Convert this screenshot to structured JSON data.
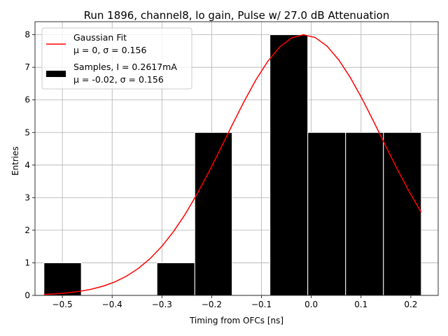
{
  "chart_data": {
    "type": "bar",
    "title": "Run 1896, channel8, lo gain, Pulse w/ 27.0 dB Attenuation",
    "xlabel": "Timing from OFCs [ns]",
    "ylabel": "Entries",
    "xlim": [
      -0.555,
      0.255
    ],
    "ylim": [
      0,
      8.4
    ],
    "xticks": [
      -0.5,
      -0.4,
      -0.3,
      -0.2,
      -0.1,
      0.0,
      0.1,
      0.2
    ],
    "xtick_labels": [
      "−0.5",
      "−0.4",
      "−0.3",
      "−0.2",
      "−0.1",
      "0.0",
      "0.1",
      "0.2"
    ],
    "yticks": [
      0,
      1,
      2,
      3,
      4,
      5,
      6,
      7,
      8
    ],
    "ytick_labels": [
      "0",
      "1",
      "2",
      "3",
      "4",
      "5",
      "6",
      "7",
      "8"
    ],
    "grid": true,
    "legend_placement": "top-left",
    "histogram": {
      "name": "Samples, I = 0.2617mA",
      "stats": "μ = -0.02, σ = 0.156",
      "color": "#000000",
      "bins": [
        {
          "x0": -0.537,
          "x1": -0.462,
          "value": 1
        },
        {
          "x0": -0.462,
          "x1": -0.386,
          "value": 0
        },
        {
          "x0": -0.386,
          "x1": -0.31,
          "value": 0
        },
        {
          "x0": -0.31,
          "x1": -0.234,
          "value": 1
        },
        {
          "x0": -0.234,
          "x1": -0.159,
          "value": 5
        },
        {
          "x0": -0.159,
          "x1": -0.083,
          "value": 0
        },
        {
          "x0": -0.083,
          "x1": -0.007,
          "value": 8
        },
        {
          "x0": -0.007,
          "x1": 0.069,
          "value": 5
        },
        {
          "x0": 0.069,
          "x1": 0.145,
          "value": 5
        },
        {
          "x0": 0.145,
          "x1": 0.221,
          "value": 5
        }
      ]
    },
    "fit": {
      "name": "Gaussian Fit",
      "stats": "μ = 0, σ = 0.156",
      "color": "#ff0000",
      "amplitude": 8.0,
      "mu": -0.015,
      "sigma": 0.156,
      "x_range": [
        -0.537,
        0.221
      ]
    }
  }
}
